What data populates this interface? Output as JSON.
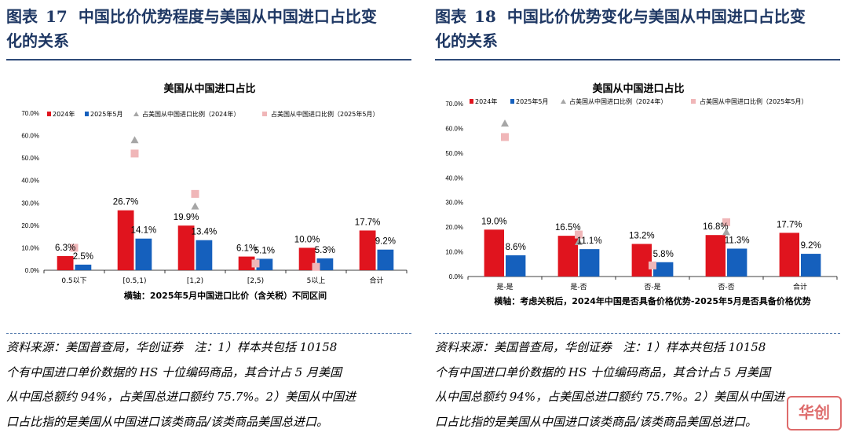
{
  "panels": [
    {
      "fig_label": "图表",
      "fig_number": "17",
      "title_line1": "中国比价优势程度与美国从中国进口占比变",
      "title_line2": "化的关系",
      "note_lines": [
        "资料来源：美国普查局，华创证券   注：1）样本共包括 10158",
        "个有中国进口单价数据的 HS 十位编码商品，其合计占 5 月美国",
        "从中国总额约 94%，占美国总进口额约 75.7%。2）美国从中国进",
        "口占比指的是美国从中国进口该类商品/该类商品美国总进口。"
      ]
    },
    {
      "fig_label": "图表",
      "fig_number": "18",
      "title_line1": "中国比价优势变化与美国从中国进口占比变",
      "title_line2": "化的关系",
      "note_lines": [
        "资料来源：美国普查局，华创证券   注：1）样本共包括 10158",
        "个有中国进口单价数据的 HS 十位编码商品，其合计占 5 月美国",
        "从中国总额约 94%，占美国总进口额约 75.7%。2）美国从中国进",
        "口占比指的是美国从中国进口该类商品/该类商品美国总进口。"
      ]
    }
  ],
  "chart_data": [
    {
      "type": "bar",
      "title": "美国从中国进口占比",
      "xlabel": "横轴：2025年5月中国进口比价（含关税）不同区间",
      "ylabel": "",
      "ylim": [
        0,
        70
      ],
      "yticks": [
        "0.0%",
        "10.0%",
        "20.0%",
        "30.0%",
        "40.0%",
        "50.0%",
        "60.0%",
        "70.0%"
      ],
      "categories": [
        "0.5以下",
        "[0.5,1)",
        "[1,2)",
        "[2,5)",
        "5以上",
        "合计"
      ],
      "legend_position": "top",
      "series": [
        {
          "name": "2024年",
          "kind": "bar",
          "color": "#e0141e",
          "values": [
            6.3,
            26.7,
            19.9,
            6.1,
            10.0,
            17.7
          ],
          "labels": [
            "6.3%",
            "26.7%",
            "19.9%",
            "6.1%",
            "10.0%",
            "17.7%"
          ]
        },
        {
          "name": "2025年5月",
          "kind": "bar",
          "color": "#1560bd",
          "values": [
            2.5,
            14.1,
            13.4,
            5.1,
            5.3,
            9.2
          ],
          "labels": [
            "2.5%",
            "14.1%",
            "13.4%",
            "5.1%",
            "5.3%",
            "9.2%"
          ]
        },
        {
          "name": "占美国从中国进口比例（2024年）",
          "kind": "triangle",
          "color": "#a6a6a6",
          "values": [
            null,
            58.0,
            28.5,
            null,
            null,
            null
          ]
        },
        {
          "name": "占美国从中国进口比例（2025年5月）",
          "kind": "square",
          "color": "#f0b6b8",
          "values": [
            10.0,
            52.0,
            34.0,
            3.0,
            1.5,
            null
          ]
        }
      ]
    },
    {
      "type": "bar",
      "title": "美国从中国进口占比",
      "xlabel": "横轴：考虑关税后，2024年中国是否具备价格优势-2025年5月是否具备价格优势",
      "ylabel": "",
      "ylim": [
        0,
        70
      ],
      "yticks": [
        "0.0%",
        "10.0%",
        "20.0%",
        "30.0%",
        "40.0%",
        "50.0%",
        "60.0%",
        "70.0%"
      ],
      "categories": [
        "是-是",
        "是-否",
        "否-是",
        "否-否",
        "合计"
      ],
      "legend_position": "top",
      "series": [
        {
          "name": "2024年",
          "kind": "bar",
          "color": "#e0141e",
          "values": [
            19.0,
            16.5,
            13.2,
            16.8,
            17.7
          ],
          "labels": [
            "19.0%",
            "16.5%",
            "13.2%",
            "16.8%",
            "17.7%"
          ]
        },
        {
          "name": "2025年5月",
          "kind": "bar",
          "color": "#1560bd",
          "values": [
            8.6,
            11.1,
            5.8,
            11.3,
            9.2
          ],
          "labels": [
            "8.6%",
            "11.1%",
            "5.8%",
            "11.3%",
            "9.2%"
          ]
        },
        {
          "name": "占美国从中国进口比例（2024年）",
          "kind": "triangle",
          "color": "#a6a6a6",
          "values": [
            62.0,
            14.0,
            null,
            18.0,
            null
          ]
        },
        {
          "name": "占美国从中国进口比例（2025年5月）",
          "kind": "square",
          "color": "#f0b6b8",
          "values": [
            56.5,
            17.0,
            4.5,
            22.0,
            null
          ]
        }
      ]
    }
  ],
  "watermark_text": "华创"
}
